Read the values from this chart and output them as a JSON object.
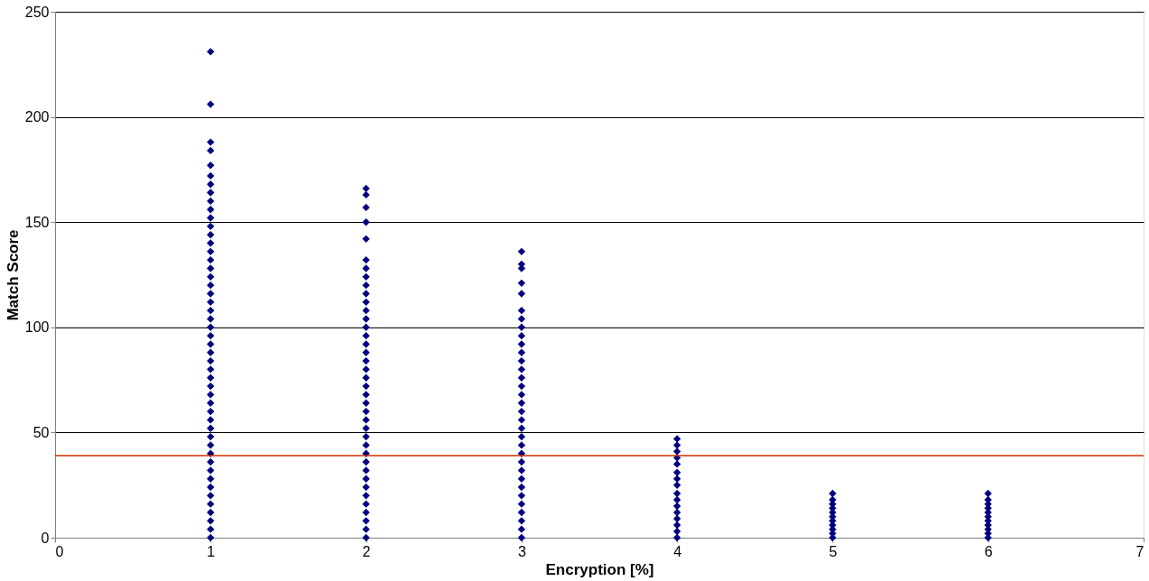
{
  "chart_data": {
    "type": "scatter",
    "xlabel": "Encryption [%]",
    "ylabel": "Match Score",
    "xlim": [
      0,
      7
    ],
    "xticks": [
      0,
      1,
      2,
      3,
      4,
      5,
      6,
      7
    ],
    "ylim": [
      0,
      250
    ],
    "yticks": [
      0,
      50,
      100,
      150,
      200,
      250
    ],
    "grid": "y",
    "marker": "diamond",
    "legend": false,
    "ref_lines": [
      {
        "axis": "y",
        "value": 39,
        "color": "#cc3300"
      }
    ],
    "series": [
      {
        "color": "#000080",
        "x": [
          1,
          1,
          1,
          1,
          1,
          1,
          1,
          1,
          1,
          1,
          1,
          1,
          1,
          1,
          1,
          1,
          1,
          1,
          1,
          1,
          1,
          1,
          1,
          1,
          1,
          1,
          1,
          1,
          1,
          1,
          1,
          1,
          1,
          1,
          1,
          1,
          1,
          1,
          1,
          1,
          1,
          1,
          1,
          1,
          1,
          1,
          1,
          1,
          1
        ],
        "values": [
          0,
          4,
          8,
          12,
          16,
          20,
          24,
          28,
          32,
          36,
          40,
          44,
          48,
          52,
          56,
          60,
          64,
          68,
          72,
          76,
          80,
          84,
          88,
          92,
          96,
          100,
          104,
          108,
          112,
          116,
          120,
          124,
          128,
          132,
          136,
          140,
          144,
          148,
          152,
          156,
          160,
          164,
          168,
          172,
          177,
          184,
          188,
          206,
          231
        ]
      },
      {
        "color": "#000080",
        "x": [
          2,
          2,
          2,
          2,
          2,
          2,
          2,
          2,
          2,
          2,
          2,
          2,
          2,
          2,
          2,
          2,
          2,
          2,
          2,
          2,
          2,
          2,
          2,
          2,
          2,
          2,
          2,
          2,
          2,
          2,
          2,
          2,
          2,
          2,
          2,
          2,
          2,
          2,
          2
        ],
        "values": [
          0,
          4,
          8,
          12,
          16,
          20,
          24,
          28,
          32,
          36,
          40,
          44,
          48,
          52,
          56,
          60,
          64,
          68,
          72,
          76,
          80,
          84,
          88,
          92,
          96,
          100,
          104,
          108,
          112,
          116,
          120,
          124,
          128,
          132,
          142,
          150,
          157,
          163,
          166
        ]
      },
      {
        "color": "#000080",
        "x": [
          3,
          3,
          3,
          3,
          3,
          3,
          3,
          3,
          3,
          3,
          3,
          3,
          3,
          3,
          3,
          3,
          3,
          3,
          3,
          3,
          3,
          3,
          3,
          3,
          3,
          3,
          3,
          3,
          3,
          3,
          3,
          3,
          3
        ],
        "values": [
          0,
          4,
          8,
          12,
          16,
          20,
          24,
          28,
          32,
          36,
          40,
          44,
          48,
          52,
          56,
          60,
          64,
          68,
          72,
          76,
          80,
          84,
          88,
          92,
          96,
          100,
          104,
          108,
          116,
          121,
          128,
          130,
          136
        ]
      },
      {
        "color": "#000080",
        "x": [
          4,
          4,
          4,
          4,
          4,
          4,
          4,
          4,
          4,
          4,
          4,
          4,
          4,
          4,
          4,
          4
        ],
        "values": [
          0,
          3,
          6,
          9,
          12,
          15,
          18,
          21,
          25,
          28,
          31,
          35,
          38,
          41,
          44,
          47
        ]
      },
      {
        "color": "#000080",
        "x": [
          5,
          5,
          5,
          5,
          5,
          5,
          5,
          5,
          5,
          5,
          5
        ],
        "values": [
          0,
          2,
          4,
          6,
          8,
          10,
          12,
          14,
          16,
          18,
          21
        ]
      },
      {
        "color": "#000080",
        "x": [
          6,
          6,
          6,
          6,
          6,
          6,
          6,
          6,
          6,
          6,
          6
        ],
        "values": [
          0,
          2,
          4,
          6,
          8,
          10,
          12,
          14,
          16,
          18,
          21
        ]
      }
    ]
  }
}
